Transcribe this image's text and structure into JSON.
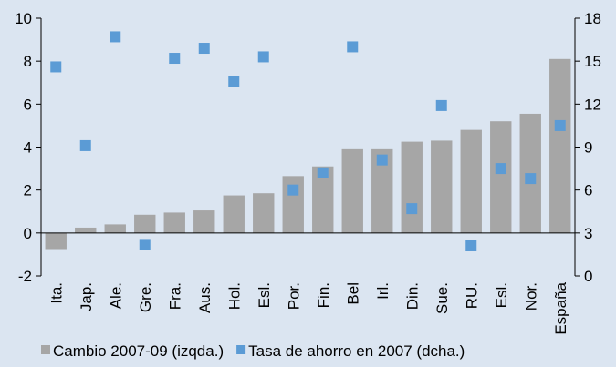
{
  "chart_data": {
    "type": "bar",
    "categories": [
      "Ita.",
      "Jap.",
      "Ale.",
      "Gre.",
      "Fra.",
      "Aus.",
      "Hol.",
      "Esl.",
      "Por.",
      "Fin.",
      "Bel",
      "Irl.",
      "Din.",
      "Sue.",
      "RU.",
      "Esl.",
      "Nor.",
      "España"
    ],
    "series": [
      {
        "name": "Cambio 2007-09 (izqda.)",
        "color": "#a6a6a6",
        "values": [
          -0.75,
          0.25,
          0.4,
          0.85,
          0.95,
          1.05,
          1.75,
          1.85,
          2.65,
          3.1,
          3.9,
          3.9,
          4.25,
          4.3,
          4.8,
          5.2,
          5.55,
          8.1
        ]
      },
      {
        "name": "Tasa de ahorro en 2007 (dcha.)",
        "color": "#5b9bd5",
        "axis": "y2",
        "values": [
          14.6,
          9.1,
          16.7,
          2.2,
          15.2,
          15.9,
          13.6,
          15.3,
          6.0,
          7.2,
          16.0,
          8.1,
          4.7,
          11.9,
          2.1,
          7.5,
          6.8,
          10.5
        ]
      }
    ],
    "ylim": [
      -2,
      10
    ],
    "yticks": [
      -2,
      0,
      2,
      4,
      6,
      8,
      10
    ],
    "y2lim": [
      0,
      18
    ],
    "y2ticks": [
      0,
      3,
      6,
      9,
      12,
      15,
      18
    ],
    "legend": "bottom"
  }
}
